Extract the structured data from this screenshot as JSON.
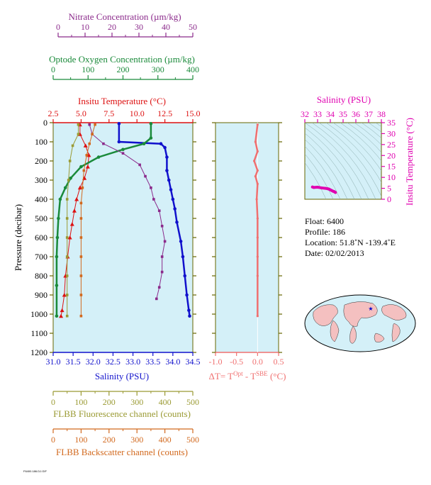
{
  "colors": {
    "nitrate": "#8b2a8b",
    "oxygen": "#1a8a3a",
    "temperature": "#dd1111",
    "salinity": "#1111cc",
    "fluorescence": "#9a9a33",
    "backscatter": "#d2691e",
    "delta": "#f07070",
    "ts": "#e000b0",
    "panel_bg": "#d4f0f8",
    "frame": "#666600"
  },
  "axes": {
    "nitrate": {
      "label": "Nitrate Concentration (µm/kg)",
      "ticks": [
        "0",
        "10",
        "20",
        "30",
        "40",
        "50"
      ]
    },
    "oxygen": {
      "label": "Optode Oxygen Concentration (µm/kg)",
      "ticks": [
        "0",
        "100",
        "200",
        "300",
        "400"
      ]
    },
    "temperature": {
      "label": "Insitu Temperature (°C)",
      "ticks": [
        "2.5",
        "5.0",
        "7.5",
        "10.0",
        "12.5",
        "15.0"
      ]
    },
    "pressure": {
      "label": "Pressure (decibar)",
      "ticks": [
        "0",
        "100",
        "200",
        "300",
        "400",
        "500",
        "600",
        "700",
        "800",
        "900",
        "1000",
        "1100",
        "1200"
      ]
    },
    "salinity": {
      "label": "Salinity (PSU)",
      "ticks": [
        "31.0",
        "31.5",
        "32.0",
        "32.5",
        "33.0",
        "33.5",
        "34.0",
        "34.5"
      ]
    },
    "fluorescence": {
      "label": "FLBB Fluorescence channel (counts)",
      "ticks": [
        "0",
        "100",
        "200",
        "300",
        "400",
        "500"
      ]
    },
    "backscatter": {
      "label": "FLBB Backscatter channel (counts)",
      "ticks": [
        "0",
        "100",
        "200",
        "300",
        "400",
        "500"
      ]
    },
    "delta": {
      "label_main": "ΔT= T",
      "sup1": "Opt",
      "label_mid": " - T",
      "sup2": "SBE",
      "label_end": " (°C)",
      "ticks": [
        "-1.0",
        "-0.5",
        "0.0",
        "0.5"
      ]
    },
    "ts_salinity": {
      "label": "Salinity (PSU)",
      "ticks": [
        "32",
        "33",
        "34",
        "35",
        "36",
        "37",
        "38"
      ]
    },
    "ts_temperature": {
      "label": "Insitu Temperature (°C)",
      "ticks": [
        "0",
        "5",
        "10",
        "15",
        "20",
        "25",
        "30",
        "35"
      ]
    }
  },
  "info": {
    "float": "Float:  6400",
    "profile": "Profile:  186",
    "location": "Location:  51.8˚N  -139.4˚E",
    "date": "Date:  02/02/2013"
  },
  "footer": "F6400.186.DJ.GIF",
  "chart_data": [
    {
      "type": "line",
      "y_name": "pressure",
      "ylim": [
        1200,
        0
      ],
      "series": [
        {
          "name": "temperature",
          "xlim": [
            2.5,
            15.0
          ],
          "x": [
            4.9,
            4.9,
            5.4,
            5.7,
            5.6,
            5.3,
            4.9,
            4.6,
            4.4,
            4.2,
            4.0,
            3.8,
            3.6,
            3.5,
            3.3,
            3.2
          ],
          "y": [
            10,
            60,
            120,
            170,
            230,
            290,
            340,
            400,
            460,
            530,
            600,
            700,
            800,
            900,
            980,
            1010
          ]
        },
        {
          "name": "salinity",
          "xlim": [
            31.0,
            34.5
          ],
          "x": [
            32.65,
            32.65,
            33.7,
            33.8,
            33.85,
            33.85,
            33.9,
            33.95,
            34.0,
            34.05,
            34.1,
            34.2,
            34.25,
            34.3,
            34.35,
            34.4,
            34.42
          ],
          "y": [
            5,
            100,
            110,
            130,
            180,
            250,
            300,
            350,
            400,
            450,
            520,
            620,
            700,
            800,
            900,
            980,
            1010
          ]
        },
        {
          "name": "oxygen",
          "xlim": [
            0,
            400
          ],
          "x": [
            280,
            280,
            260,
            200,
            130,
            80,
            50,
            35,
            20,
            15,
            12,
            10,
            10,
            10
          ],
          "y": [
            5,
            80,
            110,
            140,
            180,
            230,
            290,
            340,
            400,
            500,
            600,
            700,
            850,
            1010
          ]
        },
        {
          "name": "nitrate",
          "xlim": [
            0,
            50
          ],
          "x": [
            13,
            14,
            18,
            25,
            31,
            33,
            35,
            36,
            38,
            39,
            40,
            39,
            39,
            38,
            37
          ],
          "y": [
            10,
            60,
            110,
            160,
            220,
            280,
            340,
            400,
            460,
            540,
            620,
            700,
            780,
            860,
            920
          ]
        },
        {
          "name": "fluorescence",
          "xlim": [
            0,
            500
          ],
          "x": [
            90,
            90,
            70,
            60,
            55,
            50,
            50,
            50,
            50,
            50,
            50,
            50
          ],
          "y": [
            10,
            60,
            120,
            200,
            300,
            400,
            500,
            600,
            700,
            800,
            900,
            1010
          ]
        },
        {
          "name": "backscatter",
          "xlim": [
            0,
            500
          ],
          "x": [
            150,
            140,
            130,
            120,
            110,
            105,
            100,
            100,
            100,
            100,
            100,
            100,
            100
          ],
          "y": [
            10,
            60,
            110,
            170,
            250,
            340,
            420,
            500,
            600,
            700,
            800,
            900,
            1010
          ]
        },
        {
          "name": "delta_t",
          "xlim": [
            -1.0,
            0.5
          ],
          "x": [
            0.0,
            -0.05,
            0.0,
            -0.08,
            0.0,
            -0.05,
            0.0,
            -0.02,
            0.0,
            0.0,
            0.0,
            0.0,
            0.0
          ],
          "y": [
            10,
            100,
            150,
            200,
            250,
            280,
            320,
            400,
            500,
            600,
            700,
            800,
            1010
          ]
        }
      ]
    },
    {
      "type": "scatter",
      "title": "",
      "xlabel": "Salinity (PSU)",
      "ylabel": "Insitu Temperature (°C)",
      "xlim": [
        32,
        38
      ],
      "ylim": [
        0,
        35
      ],
      "x": [
        32.6,
        32.7,
        33.0,
        33.3,
        33.6,
        33.8,
        33.9,
        34.0,
        34.1,
        34.2,
        34.3,
        34.35,
        34.4
      ],
      "y": [
        5.6,
        5.4,
        5.5,
        5.2,
        5.0,
        4.8,
        4.6,
        4.3,
        4.0,
        3.7,
        3.5,
        3.3,
        3.1
      ]
    }
  ]
}
